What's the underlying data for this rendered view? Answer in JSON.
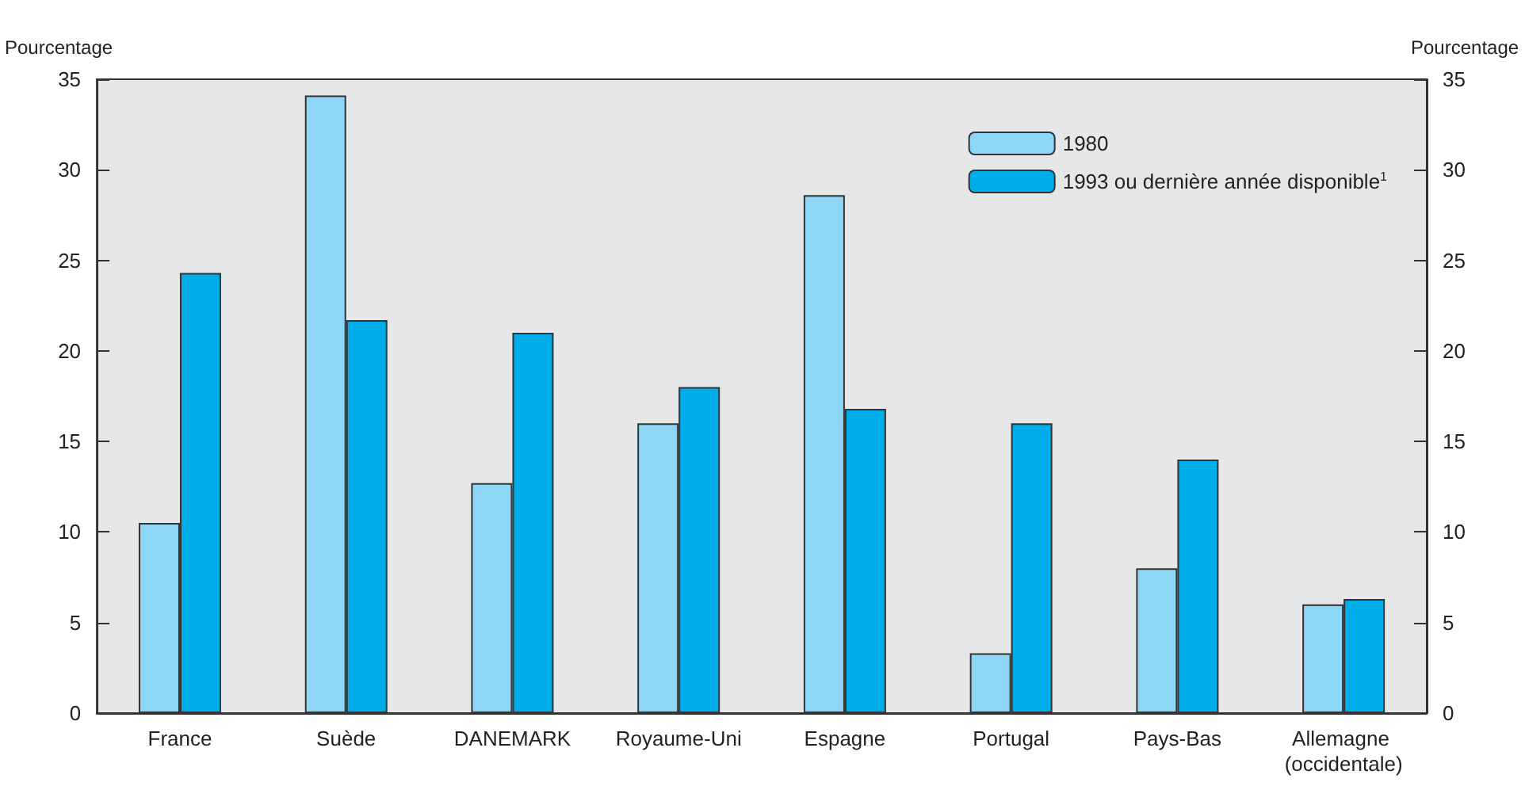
{
  "chart_data": {
    "type": "bar",
    "ylabel": "Pourcentage",
    "y2label": "Pourcentage",
    "categories": [
      "France",
      "Suède",
      "DANEMARK",
      "Royaume-Uni",
      "Espagne",
      "Portugal",
      "Pays-Bas",
      "Allemagne (occidentale)"
    ],
    "series": [
      {
        "name": "1980",
        "color": "#8ed6f5",
        "values": [
          10.5,
          34.1,
          12.7,
          16.0,
          28.6,
          3.3,
          8.0,
          6.0
        ]
      },
      {
        "name": "1993 ou dernière année disponible$^{1}$",
        "color": "#00adeb",
        "values": [
          24.3,
          21.7,
          21.0,
          18.0,
          16.8,
          16.0,
          14.0,
          6.3
        ]
      }
    ],
    "ylim": [
      0,
      35
    ],
    "yticks": [
      0,
      5,
      10,
      15,
      20,
      25,
      30,
      35
    ],
    "y2lim": [
      0,
      35
    ],
    "y2ticks": [
      0,
      5,
      10,
      15,
      20,
      25,
      30,
      35
    ],
    "grid": false,
    "legend": "top right"
  }
}
